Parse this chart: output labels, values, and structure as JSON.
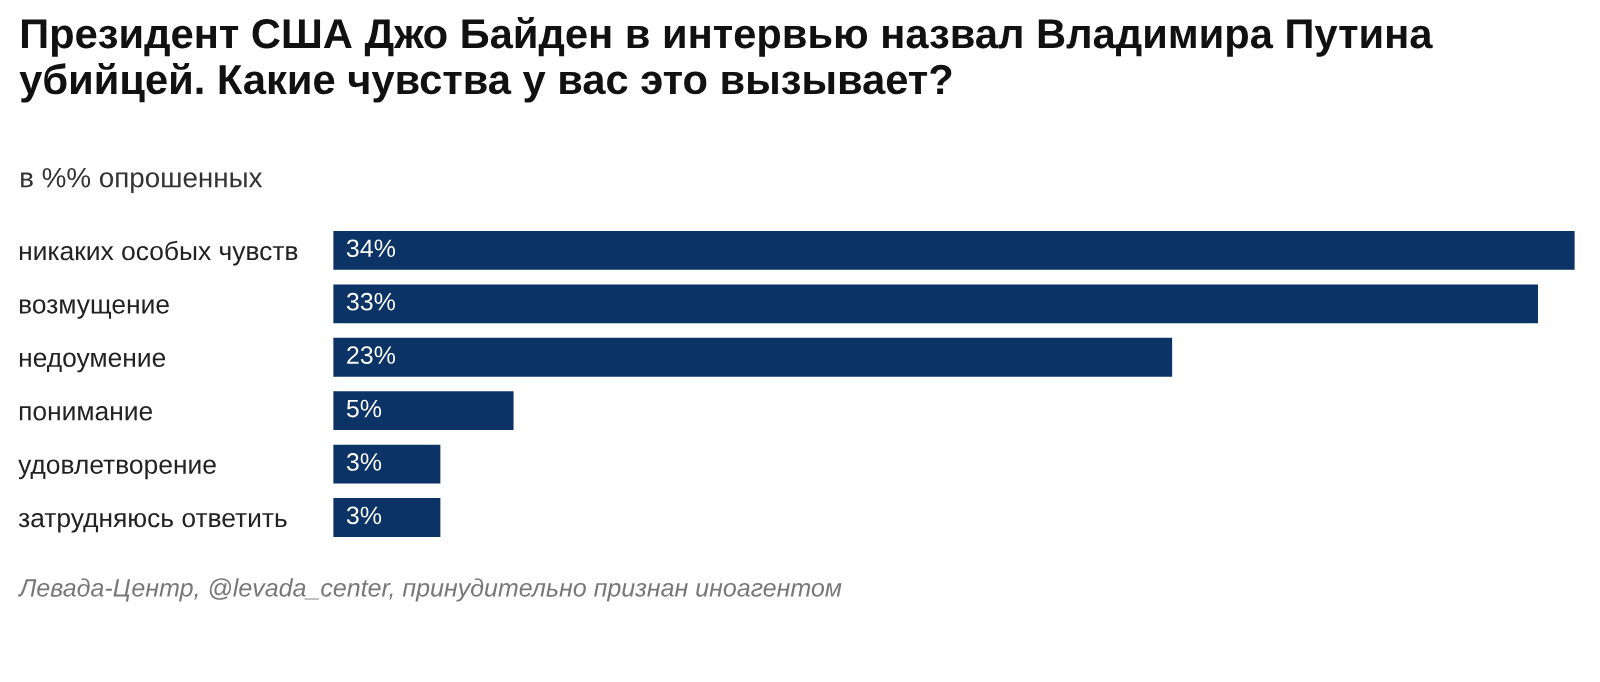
{
  "chart_data": {
    "type": "bar",
    "orientation": "horizontal",
    "title": "Президент США Джо Байден в интервью назвал Владимира Путина убийцей. Какие чувства у вас это вызывает?",
    "subtitle": "в %% опрошенных",
    "categories": [
      "никаких особых чувств",
      "возмущение",
      "недоумение",
      "понимание",
      "удовлетворение",
      "затрудняюсь ответить"
    ],
    "values": [
      34,
      33,
      23,
      5,
      3,
      3
    ],
    "value_labels": [
      "34%",
      "33%",
      "23%",
      "5%",
      "3%",
      "3%"
    ],
    "color": "#0b3366",
    "annotations": [
      "Левада-Центр, @levada_center, принудительно признан иноагентом"
    ],
    "grid": false,
    "legend": false
  }
}
